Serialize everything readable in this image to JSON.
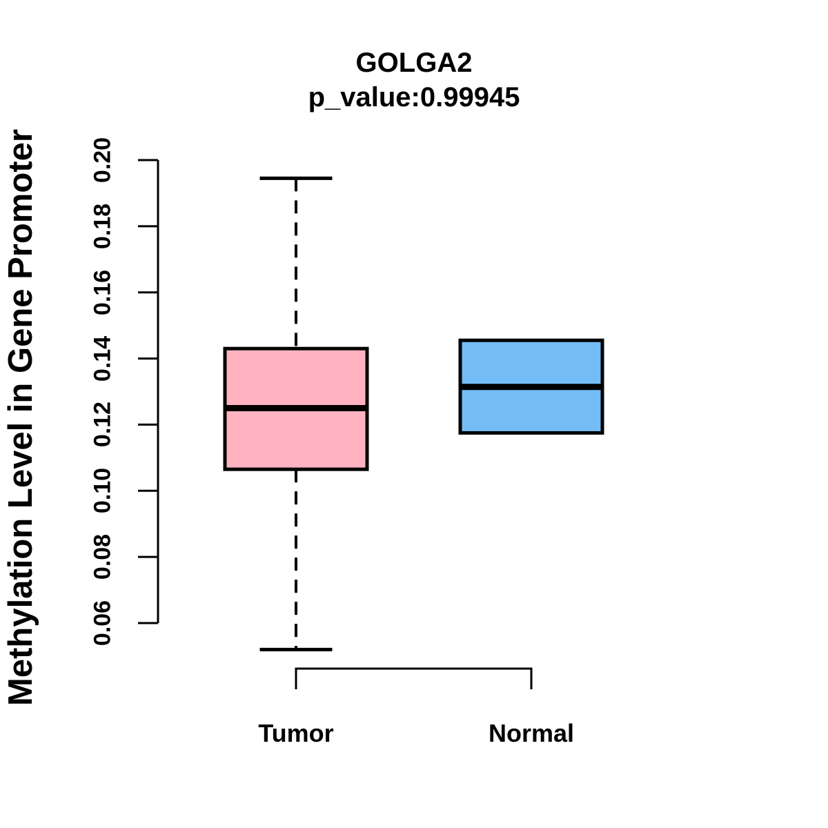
{
  "chart_data": {
    "type": "boxplot",
    "title": "GOLGA2",
    "subtitle": "p_value:0.99945",
    "ylabel": "Methylation Level in Gene Promoter",
    "xlabel": "",
    "categories": [
      "Tumor",
      "Normal"
    ],
    "y_ticks": [
      "0.06",
      "0.08",
      "0.10",
      "0.12",
      "0.14",
      "0.16",
      "0.18",
      "0.20"
    ],
    "ylim": [
      0.052,
      0.2
    ],
    "grid": "off",
    "legend": "none",
    "series": [
      {
        "name": "Tumor",
        "color": "#FFB3C1",
        "whisker_low": 0.052,
        "q1": 0.1065,
        "median": 0.125,
        "q3": 0.143,
        "whisker_high": 0.1945
      },
      {
        "name": "Normal",
        "color": "#74BCF5",
        "whisker_low": 0.1175,
        "q1": 0.1175,
        "median": 0.1314,
        "q3": 0.1455,
        "whisker_high": 0.1455
      }
    ],
    "colors": {
      "stroke": "#000000",
      "background": "#ffffff"
    }
  }
}
